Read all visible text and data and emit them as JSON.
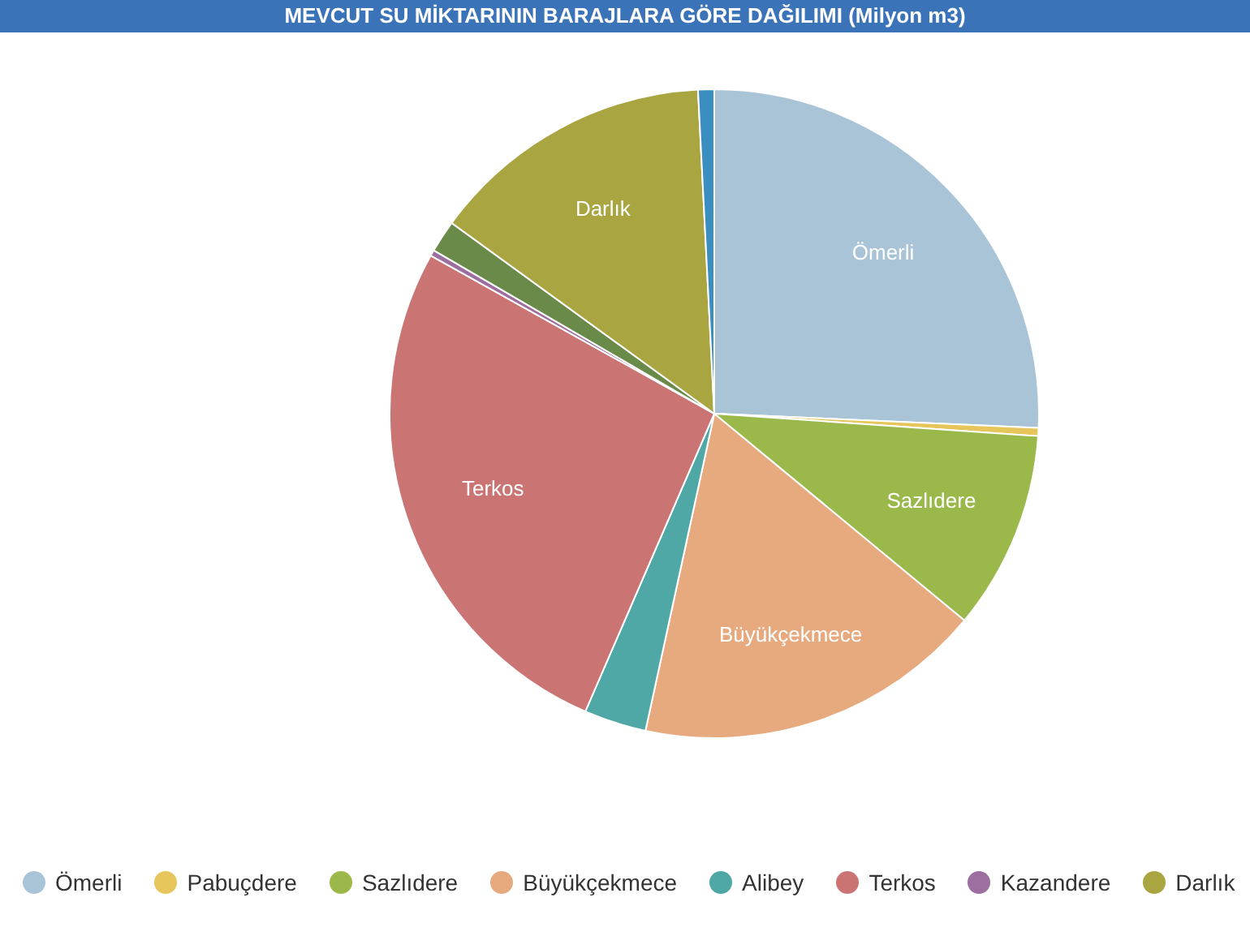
{
  "chart_data": {
    "type": "pie",
    "title": "MEVCUT SU MİKTARININ BARAJLARA GÖRE DAĞILIMI (Milyon m3)",
    "categories": [
      "Ömerli",
      "Pabuçdere",
      "Sazlıdere",
      "Büyükçekmece",
      "Alibey",
      "Terkos",
      "Kazandere",
      null,
      "Darlık",
      null
    ],
    "values": [
      25.7,
      0.4,
      9.9,
      17.4,
      3.1,
      26.6,
      0.3,
      1.6,
      14.2,
      0.8
    ],
    "colors": [
      "#a9c4d6",
      "#e6c65a",
      "#9bb84a",
      "#e7a97e",
      "#4fa8a6",
      "#cb7474",
      "#9d6fa0",
      "#6a8a4a",
      "#a9a540",
      "#3a8fc0"
    ],
    "legend": "bottom"
  }
}
